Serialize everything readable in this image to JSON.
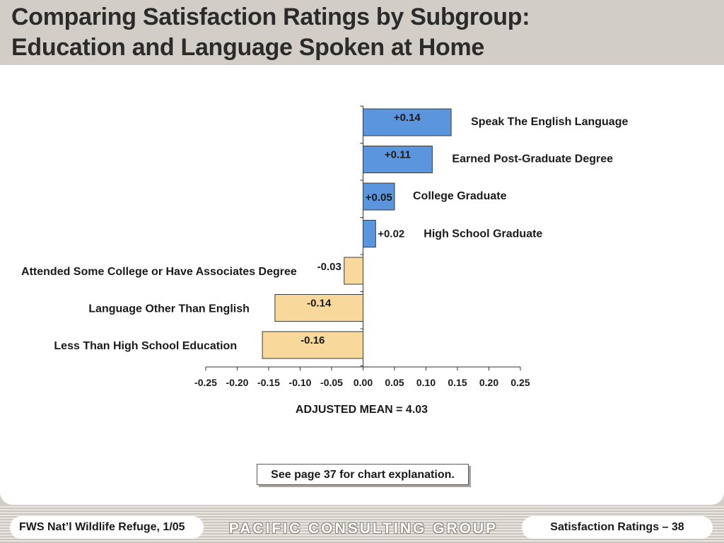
{
  "title": {
    "line1": "Comparing Satisfaction Ratings by Subgroup:",
    "line2": "Education and Language Spoken at Home"
  },
  "chart_data": {
    "type": "bar",
    "orientation": "horizontal",
    "categories": [
      "Speak The English Language",
      "Earned Post-Graduate Degree",
      "College Graduate",
      "High School Graduate",
      "Attended Some College or Have Associates Degree",
      "Language Other Than English",
      "Less Than High School Education"
    ],
    "values": [
      0.14,
      0.11,
      0.05,
      0.02,
      -0.03,
      -0.14,
      -0.16
    ],
    "value_labels": [
      "+0.14",
      "+0.11",
      "+0.05",
      "+0.02",
      "-0.03",
      "-0.14",
      "-0.16"
    ],
    "xlim": [
      -0.25,
      0.25
    ],
    "xticks": [
      "-0.25",
      "-0.20",
      "-0.15",
      "-0.10",
      "-0.05",
      "0.00",
      "0.05",
      "0.10",
      "0.15",
      "0.20",
      "0.25"
    ],
    "xlabel": "ADJUSTED MEAN = 4.03",
    "grid": false,
    "legend": "none",
    "colors": {
      "positive": "#5b95de",
      "negative": "#f9d89b",
      "outline": "#3a3a3a"
    }
  },
  "note": "See page 37 for chart explanation.",
  "footer": {
    "left": "FWS Nat’l Wildlife Refuge, 1/05",
    "logo": "PACIFIC CONSULTING GROUP",
    "right": "Satisfaction Ratings – 38"
  }
}
